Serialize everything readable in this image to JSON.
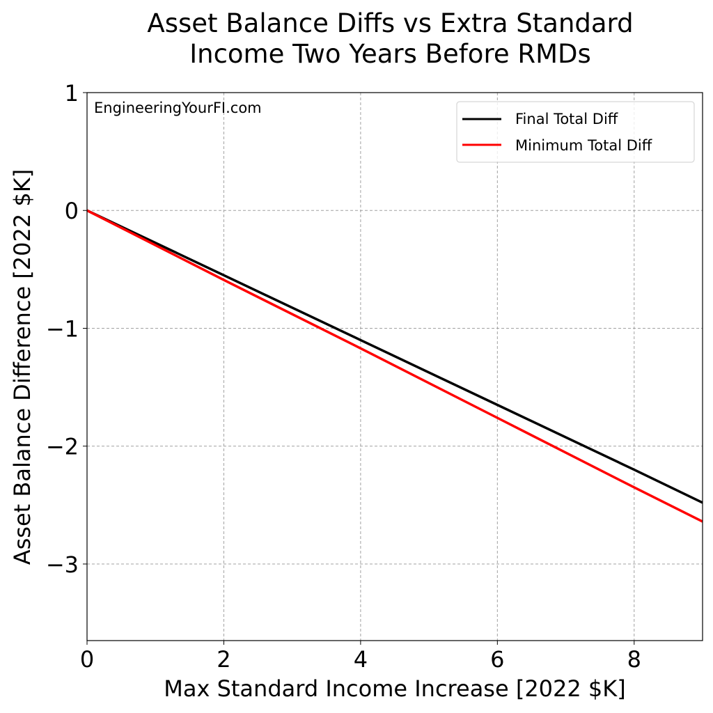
{
  "chart_data": {
    "type": "line",
    "title": "Asset Balance Diffs vs Extra Standard Income Two Years Before RMDs",
    "title_lines": [
      "Asset Balance Diffs vs Extra Standard",
      "Income Two Years Before RMDs"
    ],
    "xlabel": "Max Standard Income Increase [2022 $K]",
    "ylabel": "Asset Balance Difference [2022 $K]",
    "xlim": [
      0,
      9
    ],
    "ylim": [
      -3.65,
      1
    ],
    "xticks": [
      0,
      2,
      4,
      6,
      8
    ],
    "xtick_labels": [
      "0",
      "2",
      "4",
      "6",
      "8"
    ],
    "yticks": [
      1,
      0,
      -1,
      -2,
      -3
    ],
    "ytick_labels": [
      "1",
      "0",
      "−1",
      "−2",
      "−3"
    ],
    "grid": true,
    "legend_position": "upper right",
    "annotation": "EngineeringYourFI.com",
    "x": [
      0,
      2,
      4,
      6,
      8,
      9
    ],
    "series": [
      {
        "name": "Final Total Diff",
        "color": "#000000",
        "values": [
          0,
          -0.55,
          -1.1,
          -1.65,
          -2.2,
          -2.48
        ]
      },
      {
        "name": "Minimum Total Diff",
        "color": "#ff0000",
        "values": [
          0,
          -0.59,
          -1.17,
          -1.76,
          -2.35,
          -2.64
        ]
      }
    ]
  }
}
